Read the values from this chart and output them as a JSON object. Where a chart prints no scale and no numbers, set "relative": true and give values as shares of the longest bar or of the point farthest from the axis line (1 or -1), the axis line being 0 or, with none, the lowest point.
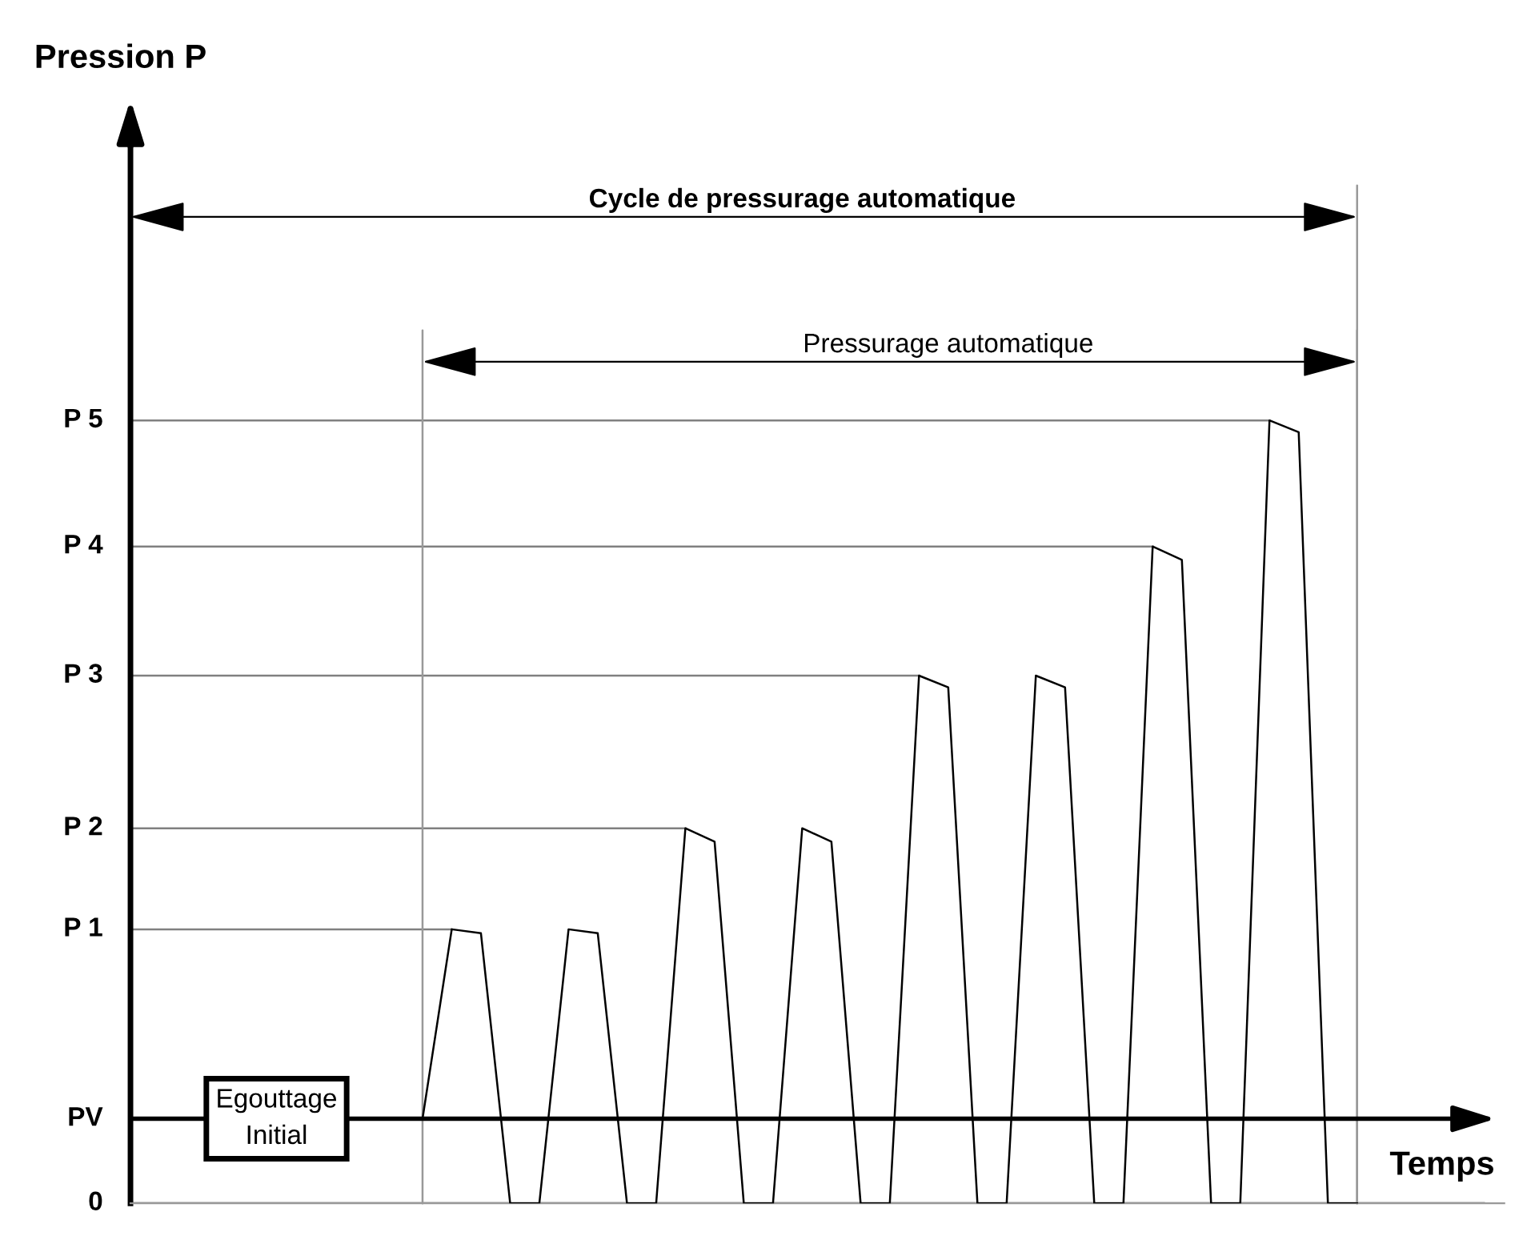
{
  "chart_data": {
    "type": "line",
    "relative": true,
    "xlabel": "Temps",
    "categories": [
      null,
      null,
      null,
      null,
      null,
      null,
      null,
      null,
      null,
      null,
      null,
      null,
      null,
      null,
      null,
      null,
      null,
      null,
      null,
      null,
      null,
      null,
      null,
      null,
      null,
      null,
      null,
      null,
      null,
      null,
      null,
      null,
      null,
      null,
      null,
      null,
      null,
      null,
      null,
      null,
      null,
      null,
      null
    ],
    "series": [
      {
        "color": "#000000",
        "values": [
          null,
          null,
          null,
          null,
          null,
          null,
          null,
          null,
          null,
          null,
          0.108,
          0.35,
          0.345,
          0,
          0,
          0.35,
          0.345,
          0,
          0,
          0.479,
          0.462,
          0,
          0,
          0.479,
          0.462,
          0,
          0,
          0.674,
          0.659,
          0,
          0,
          0.674,
          0.659,
          0,
          0,
          0.839,
          0.822,
          0,
          0,
          1.0,
          0.985,
          0,
          0
        ]
      }
    ],
    "ref_lines": [
      {
        "axis": "y",
        "value": 0,
        "label": "0",
        "line_style": "solid",
        "color": "#999999"
      },
      {
        "axis": "y",
        "value": 0.108,
        "label": "PV",
        "line_style": "solid",
        "color": "#000000"
      },
      {
        "axis": "y",
        "value": 0.35,
        "label": "P 1",
        "color": "#808080"
      },
      {
        "axis": "y",
        "value": 0.479,
        "label": "P 2",
        "color": "#808080"
      },
      {
        "axis": "y",
        "value": 0.674,
        "label": "P 3",
        "color": "#808080"
      },
      {
        "axis": "y",
        "value": 0.839,
        "label": "P 4",
        "color": "#808080"
      },
      {
        "axis": "y",
        "value": 1.0,
        "label": "P 5",
        "color": "#808080"
      }
    ],
    "annotations": [
      "Cycle de pressurage automatique",
      "Pressurage automatique",
      "Egouttage\nInitial",
      "Pression P"
    ],
    "marker": "none",
    "line_style": "solid"
  }
}
